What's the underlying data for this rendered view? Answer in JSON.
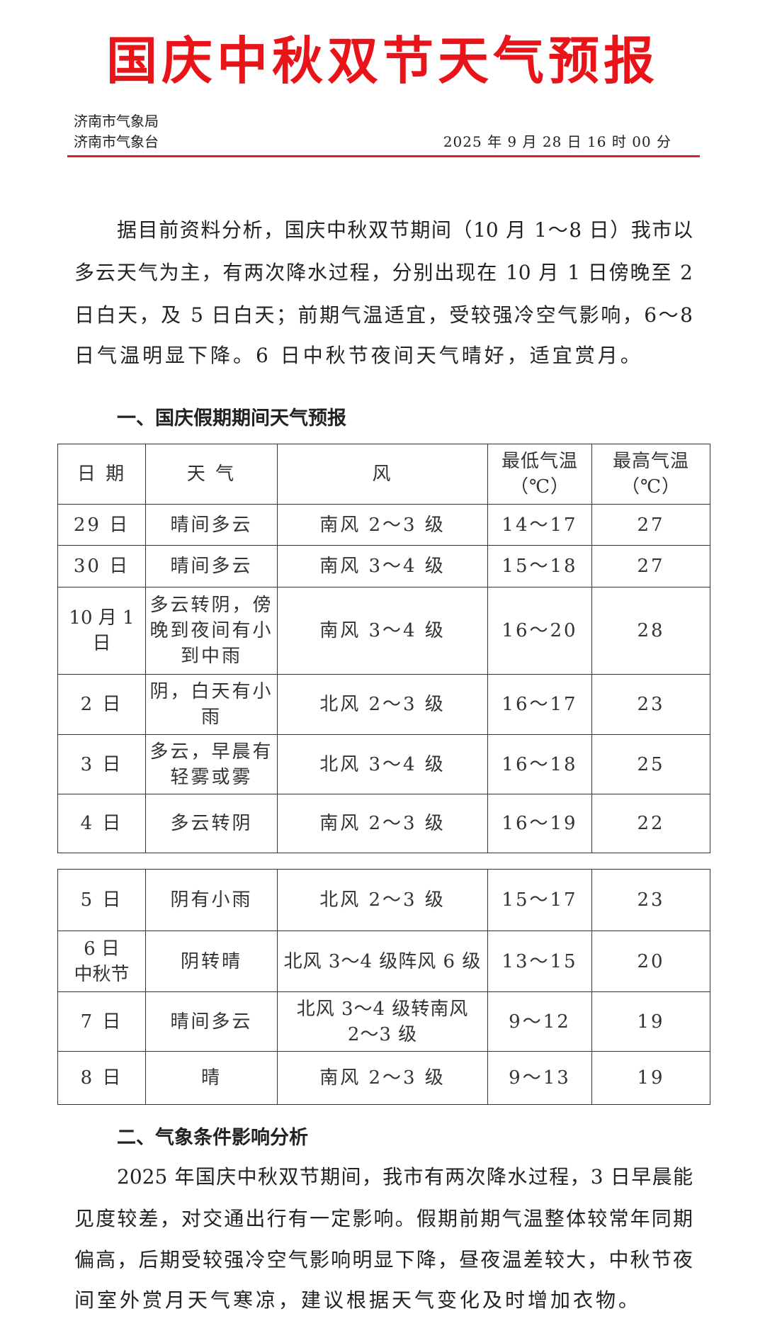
{
  "header": {
    "title": "国庆中秋双节天气预报",
    "org_lines": [
      "济南市气象局",
      "济南市气象台"
    ],
    "date": "2025 年 9 月 28 日 16 时 00 分",
    "accent_color": "#e8141a"
  },
  "intro_lines": [
    "据目前资料分析，国庆中秋双节期间（10 月 1～8 日）我市以",
    "多云天气为主，有两次降水过程，分别出现在 10 月 1 日傍晚至 2",
    "日白天，及 5 日白天；前期气温适宜，受较强冷空气影响，6～8",
    "日气温明显下降。6 日中秋节夜间天气晴好，适宜赏月。"
  ],
  "section1": {
    "heading": "一、国庆假期期间天气预报",
    "columns": [
      "日 期",
      "天 气",
      "风",
      "最低气温\n（℃）",
      "最高气温\n（℃）"
    ],
    "table1_rows": [
      [
        "29 日",
        "晴间多云",
        "南风 2～3 级",
        "14～17",
        "27"
      ],
      [
        "30 日",
        "晴间多云",
        "南风 3～4 级",
        "15～18",
        "27"
      ],
      [
        "10 月 1 日",
        "多云转阴，傍\n晚到夜间有小\n到中雨",
        "南风 3～4 级",
        "16～20",
        "28"
      ],
      [
        "2 日",
        "阴，白天有小\n雨",
        "北风 2～3 级",
        "16～17",
        "23"
      ],
      [
        "3 日",
        "多云，早晨有\n轻雾或雾",
        "北风 3～4 级",
        "16～18",
        "25"
      ],
      [
        "4 日",
        "多云转阴",
        "南风 2～3 级",
        "16～19",
        "22"
      ]
    ],
    "table2_rows": [
      [
        "5 日",
        "阴有小雨",
        "北风 2～3 级",
        "15～17",
        "23"
      ],
      [
        "6 日\n中秋节",
        "阴转晴",
        "北风 3～4 级阵风 6 级",
        "13～15",
        "20"
      ],
      [
        "7 日",
        "晴间多云",
        "北风 3～4 级转南风\n2～3 级",
        "9～12",
        "19"
      ],
      [
        "8 日",
        "晴",
        "南风 2～3 级",
        "9～13",
        "19"
      ]
    ]
  },
  "section2": {
    "heading": "二、气象条件影响分析",
    "lines": [
      "2025 年国庆中秋双节期间，我市有两次降水过程，3 日早晨能",
      "见度较差，对交通出行有一定影响。假期前期气温整体较常年同期",
      "偏高，后期受较强冷空气影响明显下降，昼夜温差较大，中秋节夜",
      "间室外赏月天气寒凉，建议根据天气变化及时增加衣物。"
    ]
  }
}
